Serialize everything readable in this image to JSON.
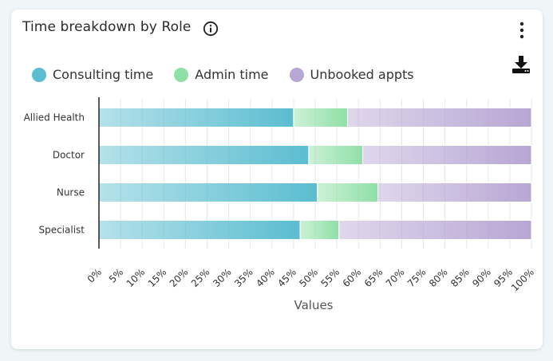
{
  "card": {
    "title": "Time breakdown by Role"
  },
  "icons": {
    "info": "info-icon",
    "menu": "vertical-dots-icon",
    "download": "download-icon"
  },
  "chart_data": {
    "type": "bar",
    "orientation": "horizontal",
    "stacked": true,
    "categories": [
      "Allied Health",
      "Doctor",
      "Nurse",
      "Specialist"
    ],
    "series": [
      {
        "name": "Consulting time",
        "color": "#5bbdd0",
        "values": [
          45,
          48.5,
          50.5,
          46.5
        ]
      },
      {
        "name": "Admin time",
        "color": "#8fe0a6",
        "values": [
          12.5,
          12.5,
          14,
          9
        ]
      },
      {
        "name": "Unbooked appts",
        "color": "#b8a6d4",
        "values": [
          42.5,
          39,
          35.5,
          44.5
        ]
      }
    ],
    "x_ticks": [
      "0%",
      "5%",
      "10%",
      "15%",
      "20%",
      "25%",
      "30%",
      "35%",
      "40%",
      "45%",
      "50%",
      "55%",
      "60%",
      "65%",
      "70%",
      "75%",
      "80%",
      "85%",
      "90%",
      "95%",
      "100%"
    ],
    "xlim": [
      0,
      100
    ],
    "xlabel": "Values",
    "ylabel": "",
    "grid": true,
    "legend_position": "top-left"
  }
}
